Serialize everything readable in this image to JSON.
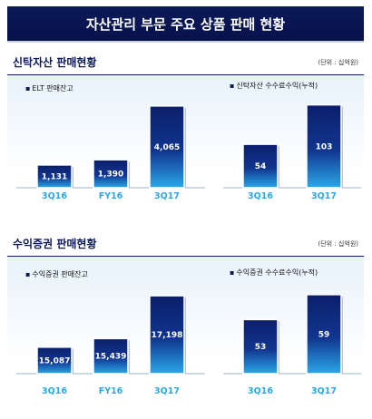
{
  "page_title": "자산관리 부문 주요 상품 판매 현황",
  "sections": [
    {
      "title": "신탁자산 판매현황",
      "unit": "(단위 : 십억원)",
      "left_chart_label": "ELT 판매잔고",
      "right_chart_label": "신탁자산  수수료수익(누적)"
    },
    {
      "title": "수익증권 판매현황",
      "unit": "(단위 : 십억원)",
      "left_chart_label": "수익증권 판매잔고",
      "right_chart_label": "수익증권 수수료수익(누적)"
    }
  ],
  "colors": {
    "bar_top": "#0b1f6b",
    "bar_bottom": "#2aa8e8",
    "axis_label": "#2aa8e8",
    "title_bg": "#0c1a5a"
  },
  "chart_data": [
    {
      "type": "bar",
      "title": "ELT 판매잔고",
      "categories": [
        "3Q16",
        "FY16",
        "3Q17"
      ],
      "values": [
        1131,
        1390,
        4065
      ],
      "labels": [
        "1,131",
        "1,390",
        "4,065"
      ],
      "ylim": [
        0,
        4600
      ]
    },
    {
      "type": "bar",
      "title": "신탁자산  수수료수익(누적)",
      "categories": [
        "3Q16",
        "3Q17"
      ],
      "values": [
        54,
        103
      ],
      "labels": [
        "54",
        "103"
      ],
      "ylim": [
        0,
        115
      ]
    },
    {
      "type": "bar",
      "title": "수익증권 판매잔고",
      "categories": [
        "3Q16",
        "FY16",
        "3Q17"
      ],
      "values": [
        15087,
        15439,
        17198
      ],
      "labels": [
        "15,087",
        "15,439",
        "17,198"
      ],
      "ylim": [
        14000,
        17500
      ]
    },
    {
      "type": "bar",
      "title": "수익증권 수수료수익(누적)",
      "categories": [
        "3Q16",
        "3Q17"
      ],
      "values": [
        53,
        59
      ],
      "labels": [
        "53",
        "59"
      ],
      "ylim": [
        40,
        60.5
      ]
    }
  ]
}
